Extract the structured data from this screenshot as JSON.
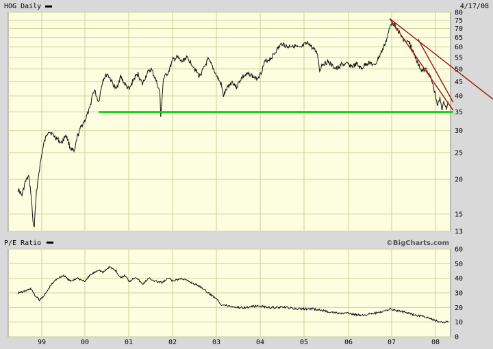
{
  "colors": {
    "plot_bg": "#fdfde0",
    "frame_bg": "#d9d9d9",
    "grid": "#c8d49a",
    "price": "#111111",
    "support": "#19d019",
    "trend": "#9b1c1c"
  },
  "header": {
    "symbol_label": "HOG Daily",
    "date": "4/17/08"
  },
  "footer": {
    "pe_label": "P/E Ratio",
    "credit": "©BigCharts.com"
  },
  "chart_data": [
    {
      "type": "line",
      "title": "HOG Daily",
      "ylabel": "",
      "yscale": "log",
      "ylim": [
        13,
        80
      ],
      "yticks": [
        13,
        15,
        20,
        25,
        30,
        35,
        40,
        45,
        50,
        55,
        60,
        65,
        70,
        75,
        80
      ],
      "xticks": [
        "99",
        "00",
        "01",
        "02",
        "03",
        "04",
        "05",
        "06",
        "07",
        "08"
      ],
      "series": [
        {
          "x": [
            1998.45,
            1998.55,
            1998.62,
            1998.7,
            1998.75,
            1998.8,
            1998.83,
            1998.88,
            1998.95,
            1999.05,
            1999.15,
            1999.25,
            1999.35,
            1999.45,
            1999.55,
            1999.65,
            1999.75,
            1999.8,
            1999.9,
            2000.0,
            2000.1,
            2000.15,
            2000.2,
            2000.3,
            2000.4,
            2000.5,
            2000.6,
            2000.7,
            2000.8,
            2000.9,
            2001.0,
            2001.1,
            2001.2,
            2001.3,
            2001.4,
            2001.5,
            2001.6,
            2001.7,
            2001.72,
            2001.78,
            2001.9,
            2002.0,
            2002.1,
            2002.2,
            2002.3,
            2002.4,
            2002.5,
            2002.6,
            2002.7,
            2002.8,
            2002.9,
            2003.0,
            2003.1,
            2003.15,
            2003.25,
            2003.35,
            2003.45,
            2003.55,
            2003.6,
            2003.75,
            2003.9,
            2004.0,
            2004.1,
            2004.25,
            2004.35,
            2004.5,
            2004.6,
            2004.75,
            2004.9,
            2005.0,
            2005.1,
            2005.2,
            2005.3,
            2005.35,
            2005.4,
            2005.55,
            2005.65,
            2005.75,
            2005.85,
            2006.0,
            2006.1,
            2006.2,
            2006.3,
            2006.4,
            2006.5,
            2006.6,
            2006.7,
            2006.8,
            2006.9,
            2006.95,
            2007.0,
            2007.1,
            2007.2,
            2007.3,
            2007.4,
            2007.5,
            2007.55,
            2007.6,
            2007.7,
            2007.8,
            2007.85,
            2007.92,
            2008.0,
            2008.05,
            2008.1,
            2008.15,
            2008.2,
            2008.25,
            2008.3
          ],
          "values": [
            18.5,
            17.5,
            19.5,
            20.5,
            18.0,
            14.0,
            13.5,
            18.0,
            22.0,
            27.0,
            30.0,
            29.0,
            28.0,
            27.0,
            29.0,
            26.0,
            25.0,
            28.0,
            31.0,
            33.0,
            36.0,
            40.0,
            42.0,
            38.0,
            46.0,
            48.0,
            45.0,
            42.0,
            47.0,
            44.0,
            42.0,
            46.0,
            48.0,
            44.0,
            48.0,
            50.0,
            46.0,
            41.0,
            33.0,
            46.0,
            49.0,
            54.0,
            55.0,
            53.0,
            55.0,
            53.0,
            50.0,
            47.0,
            50.0,
            54.0,
            51.0,
            47.0,
            44.0,
            40.0,
            43.0,
            45.0,
            43.0,
            46.0,
            47.0,
            48.0,
            46.0,
            48.0,
            53.0,
            55.0,
            58.0,
            62.0,
            60.0,
            61.0,
            59.0,
            61.0,
            62.0,
            59.0,
            57.0,
            49.0,
            52.0,
            53.0,
            51.0,
            50.0,
            52.0,
            52.0,
            51.0,
            52.0,
            50.0,
            52.0,
            53.0,
            51.0,
            55.0,
            59.0,
            65.0,
            70.0,
            74.0,
            71.0,
            66.0,
            63.0,
            62.0,
            57.0,
            55.0,
            52.0,
            49.0,
            50.0,
            48.0,
            45.0,
            40.0,
            37.0,
            39.0,
            36.0,
            38.0,
            36.0,
            38.0
          ]
        }
      ],
      "annotations": [
        {
          "type": "support-line",
          "x": [
            2000.3,
            2008.4
          ],
          "y": [
            35,
            35
          ]
        },
        {
          "type": "trendline",
          "x": [
            2006.95,
            2008.4
          ],
          "y": [
            76,
            35.5
          ]
        },
        {
          "type": "trendline",
          "x": [
            2006.95,
            2009.35
          ],
          "y": [
            76,
            38.5
          ]
        },
        {
          "type": "trendline",
          "x": [
            2007.6,
            2008.4
          ],
          "y": [
            64,
            38
          ]
        }
      ]
    },
    {
      "type": "line",
      "title": "P/E Ratio",
      "ylim": [
        0,
        60
      ],
      "yticks": [
        0,
        10,
        20,
        30,
        40,
        50,
        60
      ],
      "xticks": [
        "99",
        "00",
        "01",
        "02",
        "03",
        "04",
        "05",
        "06",
        "07",
        "08"
      ],
      "series": [
        {
          "x": [
            1998.45,
            1998.6,
            1998.75,
            1998.85,
            1998.95,
            1999.1,
            1999.2,
            1999.35,
            1999.5,
            1999.65,
            1999.8,
            2000.0,
            2000.1,
            2000.2,
            2000.3,
            2000.4,
            2000.55,
            2000.7,
            2000.8,
            2000.9,
            2001.0,
            2001.15,
            2001.3,
            2001.45,
            2001.6,
            2001.75,
            2001.9,
            2002.0,
            2002.2,
            2002.35,
            2002.5,
            2002.65,
            2002.8,
            2002.9,
            2003.0,
            2003.1,
            2003.3,
            2003.5,
            2003.7,
            2003.9,
            2004.0,
            2004.2,
            2004.4,
            2004.6,
            2004.8,
            2005.0,
            2005.2,
            2005.4,
            2005.6,
            2005.8,
            2006.0,
            2006.2,
            2006.4,
            2006.6,
            2006.8,
            2006.95,
            2007.1,
            2007.3,
            2007.5,
            2007.7,
            2007.9,
            2008.1,
            2008.3
          ],
          "values": [
            30,
            31,
            33,
            28,
            25,
            30,
            35,
            40,
            42,
            38,
            40,
            38,
            42,
            44,
            46,
            44,
            48,
            45,
            40,
            42,
            38,
            41,
            36,
            40,
            38,
            37,
            40,
            38,
            40,
            38,
            36,
            34,
            30,
            28,
            26,
            22,
            21,
            20,
            20,
            21,
            21,
            20,
            20,
            20,
            19,
            19,
            19,
            18,
            17,
            16,
            16,
            15,
            15,
            16,
            17,
            19,
            18,
            17,
            15,
            14,
            12,
            10,
            10
          ]
        }
      ]
    }
  ]
}
